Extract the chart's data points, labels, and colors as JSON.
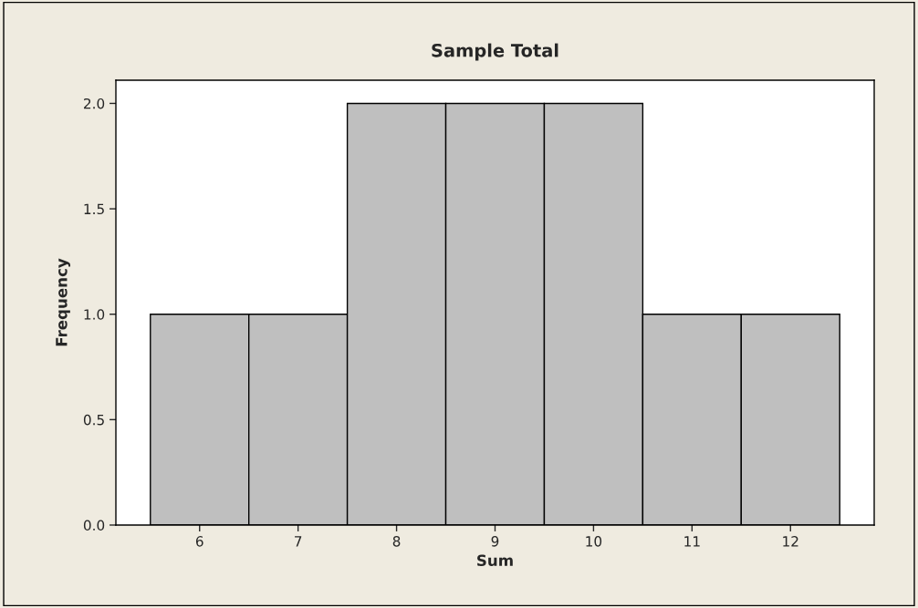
{
  "chart_data": {
    "type": "histogram",
    "title": "Sample Total",
    "xlabel": "Sum",
    "ylabel": "Frequency",
    "bins": [
      5.5,
      6.5,
      7.5,
      8.5,
      9.5,
      10.5,
      11.5,
      12.5
    ],
    "values": [
      1,
      1,
      2,
      2,
      2,
      1,
      1
    ],
    "color": "#bfbfbf",
    "xlim": [
      5.15,
      12.85
    ],
    "ylim": [
      0,
      2.11
    ],
    "xticks": [
      6,
      7,
      8,
      9,
      10,
      11,
      12
    ],
    "yticks": [
      {
        "value": 0,
        "label": "0.0"
      },
      {
        "value": 0.5,
        "label": "0.5"
      },
      {
        "value": 1,
        "label": "1.0"
      },
      {
        "value": 1.5,
        "label": "1.5"
      },
      {
        "value": 2,
        "label": "2.0"
      }
    ]
  }
}
